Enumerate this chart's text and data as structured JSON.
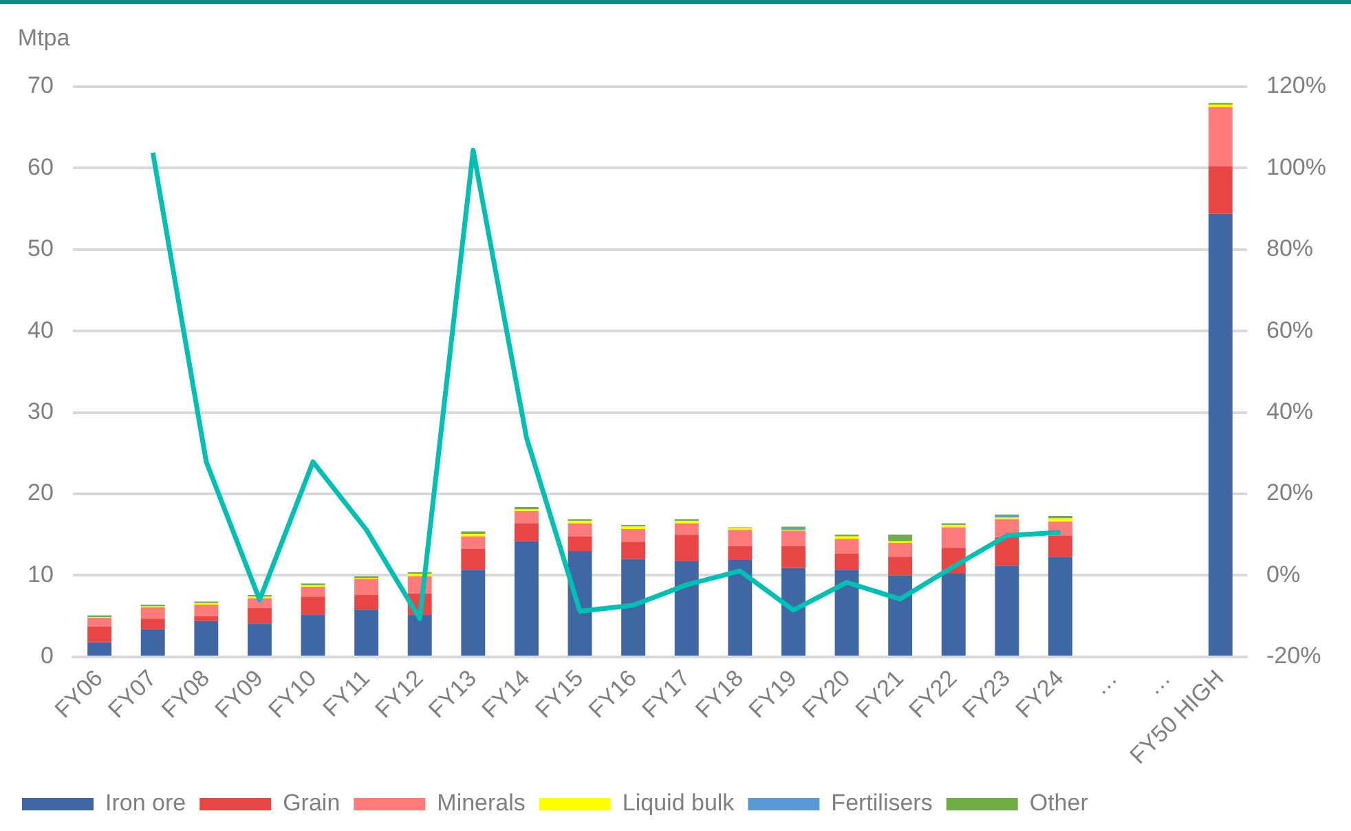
{
  "chart_data": {
    "type": "bar",
    "stacked": true,
    "ylabel": "Mtpa",
    "categories": [
      "FY06",
      "FY07",
      "FY08",
      "FY09",
      "FY10",
      "FY11",
      "FY12",
      "FY13",
      "FY14",
      "FY15",
      "FY16",
      "FY17",
      "FY18",
      "FY19",
      "FY20",
      "FY21",
      "FY22",
      "FY23",
      "FY24",
      "…",
      "…",
      "FY50 HIGH"
    ],
    "series": [
      {
        "name": "Iron ore",
        "color": "#3e67a3",
        "values": [
          1.8,
          3.4,
          4.4,
          4.1,
          5.2,
          5.8,
          5.2,
          10.7,
          14.2,
          13.0,
          12.0,
          11.8,
          11.9,
          10.9,
          10.7,
          10.0,
          10.2,
          11.2,
          12.3,
          null,
          null,
          54.4
        ]
      },
      {
        "name": "Grain",
        "color": "#e84545",
        "values": [
          1.9,
          1.3,
          0.6,
          1.9,
          2.2,
          1.8,
          2.6,
          2.6,
          2.2,
          1.8,
          2.1,
          3.2,
          1.7,
          2.7,
          2.0,
          2.3,
          3.2,
          3.5,
          2.6,
          null,
          null,
          5.8
        ]
      },
      {
        "name": "Minerals",
        "color": "#fe7b7b",
        "values": [
          1.1,
          1.4,
          1.4,
          1.2,
          1.2,
          2.0,
          2.1,
          1.5,
          1.5,
          1.6,
          1.6,
          1.4,
          2.0,
          1.9,
          1.8,
          1.7,
          2.5,
          2.2,
          1.7,
          null,
          null,
          7.3
        ]
      },
      {
        "name": "Liquid bulk",
        "color": "#ffff00",
        "values": [
          0.1,
          0.1,
          0.2,
          0.2,
          0.2,
          0.1,
          0.3,
          0.3,
          0.2,
          0.3,
          0.3,
          0.3,
          0.2,
          0.1,
          0.3,
          0.2,
          0.3,
          0.2,
          0.4,
          null,
          null,
          0.3
        ]
      },
      {
        "name": "Fertilisers",
        "color": "#5b9bd5",
        "values": [
          null,
          null,
          null,
          null,
          null,
          null,
          null,
          null,
          null,
          null,
          null,
          null,
          null,
          0.2,
          null,
          null,
          null,
          0.3,
          null,
          null,
          null,
          null
        ]
      },
      {
        "name": "Other",
        "color": "#70ad47",
        "values": [
          0.2,
          0.2,
          0.2,
          0.2,
          0.2,
          0.2,
          0.2,
          0.3,
          0.3,
          0.2,
          0.2,
          0.2,
          0.1,
          0.2,
          0.2,
          0.8,
          0.2,
          0.1,
          0.3,
          null,
          null,
          0.2
        ]
      },
      {
        "type": "line",
        "axis": "y2",
        "color": "#00bfb3",
        "values": [
          null,
          103.8,
          27.9,
          -6.0,
          27.9,
          11.2,
          -10.6,
          104.4,
          33.8,
          -8.8,
          -7.3,
          -2.3,
          1.1,
          -8.5,
          -1.7,
          -5.8,
          2.2,
          9.8,
          10.6,
          null,
          null,
          null
        ]
      }
    ],
    "ylim": [
      0,
      70
    ],
    "yticks": [
      0,
      10,
      20,
      30,
      40,
      50,
      60,
      70
    ],
    "y2lim": [
      -20,
      120
    ],
    "y2ticks": [
      {
        "value": -20,
        "label": "-20%"
      },
      {
        "value": 0,
        "label": "0%"
      },
      {
        "value": 20,
        "label": "20%"
      },
      {
        "value": 40,
        "label": "40%"
      },
      {
        "value": 60,
        "label": "60%"
      },
      {
        "value": 80,
        "label": "80%"
      },
      {
        "value": 100,
        "label": "100%"
      },
      {
        "value": 120,
        "label": "120%"
      }
    ],
    "grid": "y",
    "legend": "bottom",
    "marker": "none",
    "line_style": "solid"
  }
}
